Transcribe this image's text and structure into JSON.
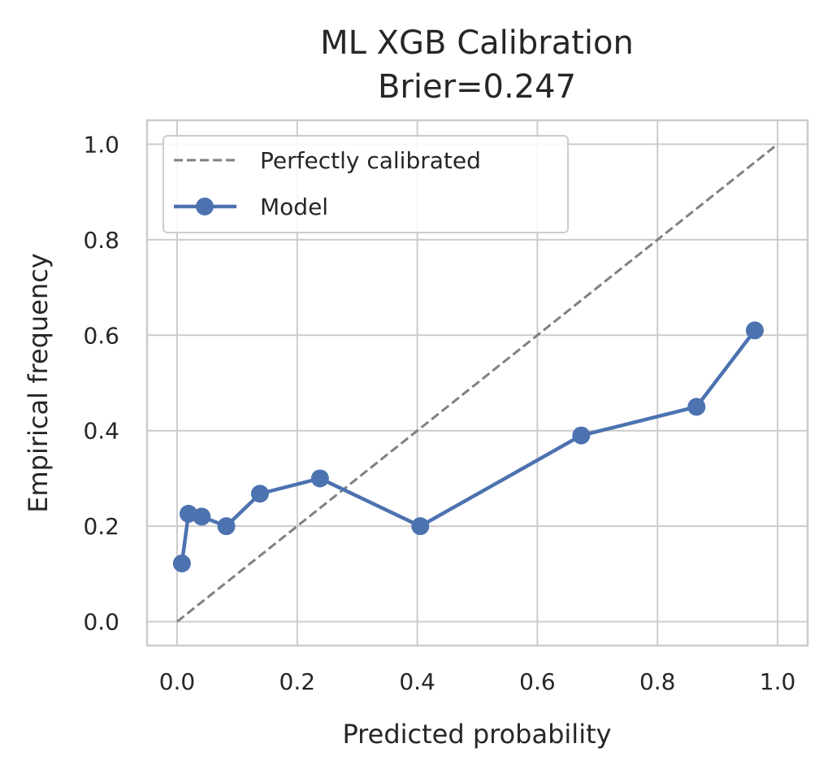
{
  "chart_data": {
    "type": "line",
    "title": "ML XGB Calibration",
    "subtitle": "Brier=0.247",
    "xlabel": "Predicted probability",
    "ylabel": "Empirical frequency",
    "xlim": [
      -0.05,
      1.05
    ],
    "ylim": [
      -0.05,
      1.05
    ],
    "xticks": [
      "0.0",
      "0.2",
      "0.4",
      "0.6",
      "0.8",
      "1.0"
    ],
    "yticks": [
      "0.0",
      "0.2",
      "0.4",
      "0.6",
      "0.8",
      "1.0"
    ],
    "grid": true,
    "legend_position": "top-left",
    "series": [
      {
        "name": "Perfectly calibrated",
        "style": "dashed",
        "color": "#808080",
        "x": [
          0.0,
          1.0
        ],
        "y": [
          0.0,
          1.0
        ]
      },
      {
        "name": "Model",
        "style": "solid-with-markers",
        "color": "#4C72B0",
        "x": [
          0.008,
          0.019,
          0.041,
          0.082,
          0.138,
          0.238,
          0.405,
          0.673,
          0.865,
          0.962
        ],
        "y": [
          0.122,
          0.226,
          0.22,
          0.2,
          0.268,
          0.3,
          0.2,
          0.39,
          0.45,
          0.61
        ]
      }
    ]
  }
}
